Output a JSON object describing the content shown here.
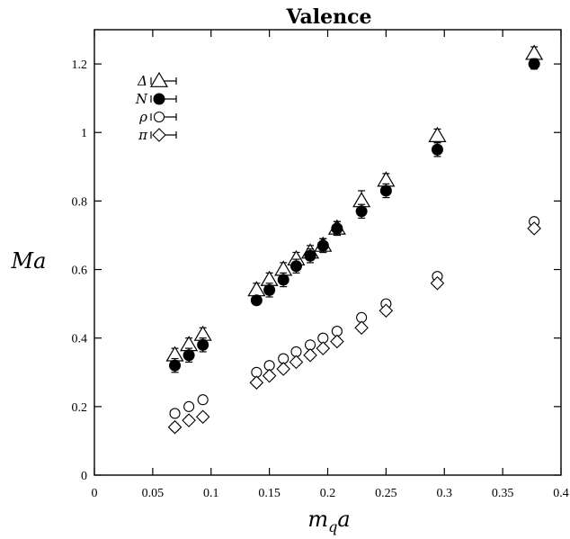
{
  "chart_data": {
    "type": "scatter",
    "title": "Valence",
    "xlabel": "m",
    "xlabel_sub": "q",
    "xlabel_tail": "a",
    "ylabel": "Ma",
    "xlim": [
      0,
      0.4
    ],
    "ylim": [
      0,
      1.3
    ],
    "x_ticks": [
      0,
      0.05,
      0.1,
      0.15,
      0.2,
      0.25,
      0.3,
      0.35,
      0.4
    ],
    "x_tick_labels": [
      "0",
      "0.05",
      "0.1",
      "0.15",
      "0.2",
      "0.25",
      "0.3",
      "0.35",
      "0.4"
    ],
    "y_ticks": [
      0,
      0.2,
      0.4,
      0.6,
      0.8,
      1.0,
      1.2
    ],
    "y_tick_labels": [
      "0",
      "0.2",
      "0.4",
      "0.6",
      "0.8",
      "1",
      "1.2"
    ],
    "grid": false,
    "legend_position": "top-left",
    "series": [
      {
        "name": "Δ",
        "marker": "open-triangle",
        "x": [
          0.069,
          0.081,
          0.093,
          0.139,
          0.15,
          0.162,
          0.173,
          0.185,
          0.196,
          0.208,
          0.229,
          0.25,
          0.294,
          0.377
        ],
        "y": [
          0.35,
          0.38,
          0.41,
          0.54,
          0.57,
          0.6,
          0.63,
          0.65,
          0.67,
          0.72,
          0.8,
          0.86,
          0.99,
          1.23
        ],
        "err": [
          0.02,
          0.02,
          0.02,
          0.02,
          0.02,
          0.02,
          0.02,
          0.02,
          0.02,
          0.02,
          0.03,
          0.02,
          0.02,
          0.02
        ]
      },
      {
        "name": "N",
        "marker": "filled-circle",
        "x": [
          0.069,
          0.081,
          0.093,
          0.139,
          0.15,
          0.162,
          0.173,
          0.185,
          0.196,
          0.208,
          0.229,
          0.25,
          0.294,
          0.377
        ],
        "y": [
          0.32,
          0.35,
          0.38,
          0.51,
          0.54,
          0.57,
          0.61,
          0.64,
          0.67,
          0.72,
          0.77,
          0.83,
          0.95,
          1.2
        ],
        "err": [
          0.02,
          0.02,
          0.02,
          0.01,
          0.02,
          0.02,
          0.02,
          0.02,
          0.02,
          0.02,
          0.02,
          0.02,
          0.02,
          0.015
        ]
      },
      {
        "name": "ρ",
        "marker": "open-circle",
        "x": [
          0.069,
          0.081,
          0.093,
          0.139,
          0.15,
          0.162,
          0.173,
          0.185,
          0.196,
          0.208,
          0.229,
          0.25,
          0.294,
          0.377
        ],
        "y": [
          0.18,
          0.2,
          0.22,
          0.3,
          0.32,
          0.34,
          0.36,
          0.38,
          0.4,
          0.42,
          0.46,
          0.5,
          0.58,
          0.74
        ],
        "err": [
          0.01,
          0.01,
          0.01,
          0.01,
          0.01,
          0.01,
          0.01,
          0.01,
          0.01,
          0.01,
          0.01,
          0.01,
          0.01,
          0.01
        ]
      },
      {
        "name": "π",
        "marker": "open-diamond",
        "x": [
          0.069,
          0.081,
          0.093,
          0.139,
          0.15,
          0.162,
          0.173,
          0.185,
          0.196,
          0.208,
          0.229,
          0.25,
          0.294,
          0.377
        ],
        "y": [
          0.14,
          0.16,
          0.17,
          0.27,
          0.29,
          0.31,
          0.33,
          0.35,
          0.37,
          0.39,
          0.43,
          0.48,
          0.56,
          0.72
        ],
        "err": [
          0.01,
          0.01,
          0.01,
          0.01,
          0.01,
          0.01,
          0.01,
          0.01,
          0.01,
          0.01,
          0.01,
          0.01,
          0.01,
          0.01
        ]
      }
    ]
  }
}
